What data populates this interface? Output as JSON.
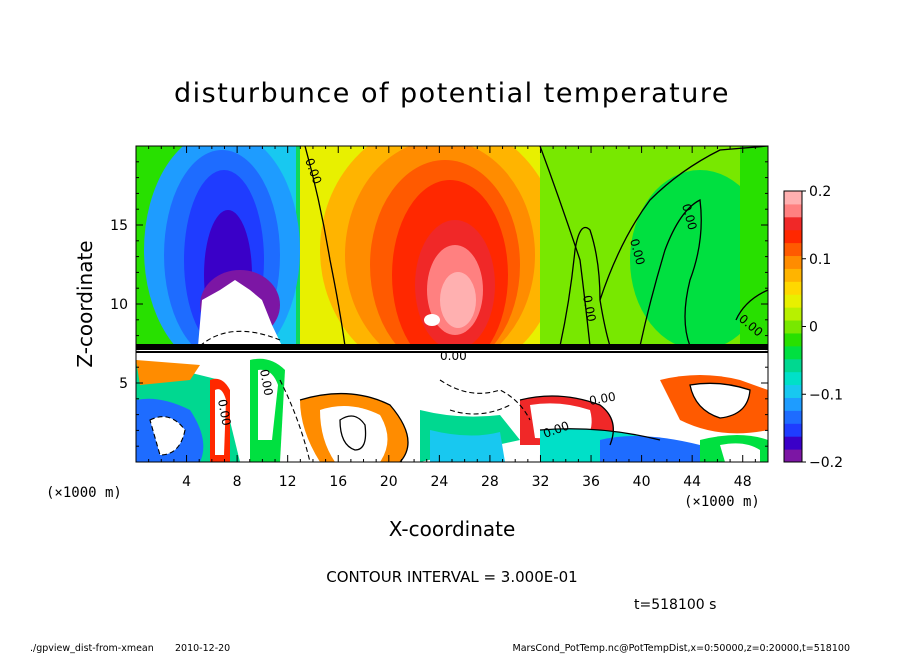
{
  "chart_data": {
    "type": "heatmap",
    "title": "disturbunce of potential temperature",
    "xlabel": "X-coordinate",
    "ylabel": "Z-coordinate",
    "x_unit": "(×1000 m)",
    "y_unit": "(×1000 m)",
    "xlim": [
      0,
      50
    ],
    "ylim": [
      0,
      20
    ],
    "x_ticks": [
      4,
      8,
      12,
      16,
      20,
      24,
      28,
      32,
      36,
      40,
      44,
      48
    ],
    "y_ticks": [
      5,
      10,
      15
    ],
    "colorbar": {
      "min": -0.2,
      "max": 0.2,
      "ticks": [
        "0.2",
        "0.1",
        "0",
        "−0.1",
        "−0.2"
      ],
      "tick_values": [
        0.2,
        0.1,
        0,
        -0.1,
        -0.2
      ],
      "colors": [
        "#7c16a4",
        "#3a00c8",
        "#1f3cff",
        "#1e6cff",
        "#1e9cff",
        "#18c8f0",
        "#00e0c8",
        "#00d890",
        "#00e040",
        "#28e000",
        "#78e800",
        "#b8f000",
        "#e8f000",
        "#ffd800",
        "#ffb400",
        "#ff8c00",
        "#ff5a00",
        "#ff2800",
        "#f02828",
        "#ff8080",
        "#ffb0b0"
      ]
    },
    "contour_labels": [
      "0.00",
      "0.00",
      "0.00",
      "0.00",
      "0.00",
      "0.00",
      "0.00",
      "0.00",
      "0.00",
      "0.00"
    ],
    "grid": false,
    "legend": "colorbar-right"
  },
  "footer": {
    "contour_interval": "CONTOUR INTERVAL = 3.000E-01",
    "time": "t=518100 s",
    "script_name": "./gpview_dist-from-xmean",
    "date": "2010-12-20",
    "source": "MarsCond_PotTemp.nc@PotTempDist,x=0:50000,z=0:20000,t=518100"
  }
}
